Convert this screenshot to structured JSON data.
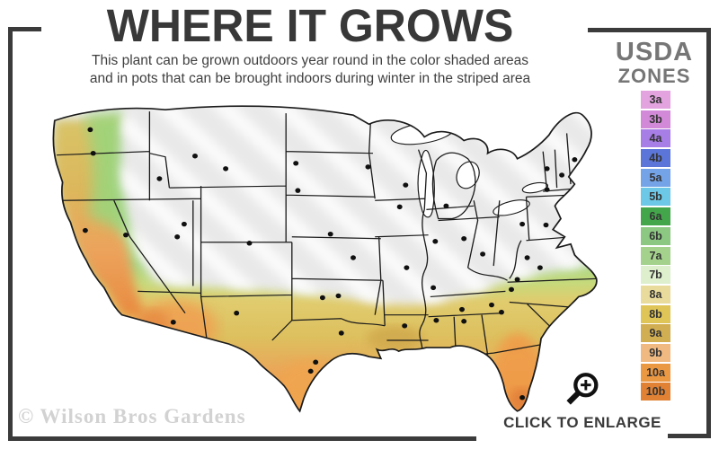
{
  "header": {
    "title": "WHERE IT GROWS",
    "subtitle_line1": "This plant can be grown outdoors year round in the color shaded areas",
    "subtitle_line2": "and in pots that can be brought indoors during winter in the striped area"
  },
  "legend": {
    "title_line1": "USDA",
    "title_line2": "ZONES",
    "zones": [
      {
        "label": "3a",
        "color": "#e2a3df"
      },
      {
        "label": "3b",
        "color": "#d28ad8"
      },
      {
        "label": "4a",
        "color": "#a77de6"
      },
      {
        "label": "4b",
        "color": "#5b76d8"
      },
      {
        "label": "5a",
        "color": "#74a3e8"
      },
      {
        "label": "5b",
        "color": "#6cc8e6"
      },
      {
        "label": "6a",
        "color": "#43a64b"
      },
      {
        "label": "6b",
        "color": "#8cc882"
      },
      {
        "label": "7a",
        "color": "#a4d28c"
      },
      {
        "label": "7b",
        "color": "#ddefcd"
      },
      {
        "label": "8a",
        "color": "#e9db9b"
      },
      {
        "label": "8b",
        "color": "#dfc557"
      },
      {
        "label": "9a",
        "color": "#d2ae52"
      },
      {
        "label": "9b",
        "color": "#f0b981"
      },
      {
        "label": "10a",
        "color": "#eb9843"
      },
      {
        "label": "10b",
        "color": "#e08134"
      }
    ]
  },
  "map": {
    "watermark": "© Wilson Bros Gardens"
  },
  "footer": {
    "enlarge_label": "CLICK TO ENLARGE"
  },
  "colors": {
    "frame": "#3b3b3b",
    "striped_area_fill": "#e9e9e9",
    "title_text": "#383838",
    "legend_title_text": "#767676"
  }
}
